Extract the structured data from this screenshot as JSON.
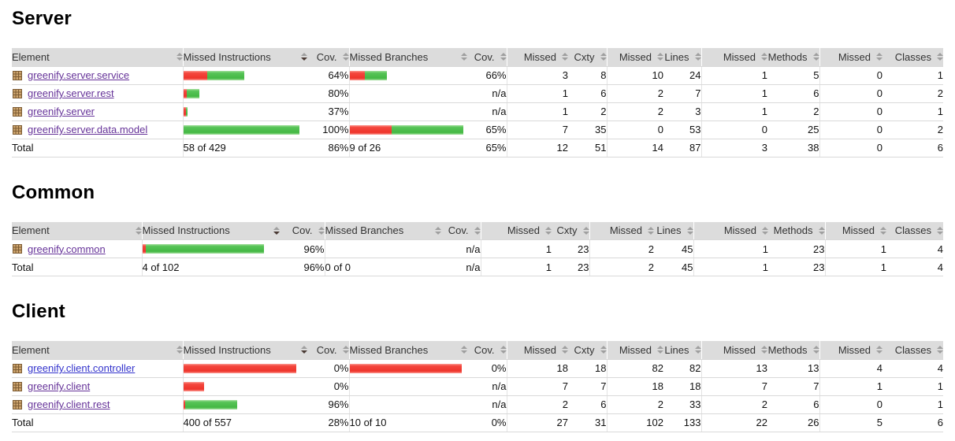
{
  "colors": {
    "bar_red": "#ee342b",
    "bar_green": "#43b843",
    "header_bg": "#dcdcdc",
    "link_visited": "#663399",
    "link_unvisited": "#3333cc",
    "row_border": "#d9d9d9",
    "package_icon_fill": "#cda46e",
    "package_icon_stroke": "#7c5b33"
  },
  "icons": {
    "package": "package-icon (brown waffle grid)",
    "sort": "up-down-triangles",
    "sort_active": "dark down-triangle (descending)"
  },
  "sort_state": {
    "column": "Missed Instructions",
    "direction": "descending"
  },
  "columns": [
    {
      "label": "Element"
    },
    {
      "label": "Missed Instructions",
      "sorted": "desc"
    },
    {
      "label": "Cov."
    },
    {
      "label": "Missed Branches"
    },
    {
      "label": "Cov."
    },
    {
      "label": "Missed"
    },
    {
      "label": "Cxty"
    },
    {
      "label": "Missed"
    },
    {
      "label": "Lines"
    },
    {
      "label": "Missed"
    },
    {
      "label": "Methods"
    },
    {
      "label": "Missed"
    },
    {
      "label": "Classes"
    }
  ],
  "sections": [
    {
      "heading": "Server",
      "rows": [
        {
          "name": "greenify.server.service",
          "instr_bar": {
            "red": 30,
            "green": 47
          },
          "instr_cov": "64%",
          "branch_bar": {
            "red": 19,
            "green": 28
          },
          "branch_cov": "66%",
          "missed_cxty": "3",
          "cxty": "8",
          "missed_lines": "10",
          "lines": "24",
          "missed_methods": "1",
          "methods": "5",
          "missed_classes": "0",
          "classes": "1"
        },
        {
          "name": "greenify.server.rest",
          "instr_bar": {
            "red": 4,
            "green": 16
          },
          "instr_cov": "80%",
          "branch_cov": "n/a",
          "missed_cxty": "1",
          "cxty": "6",
          "missed_lines": "2",
          "lines": "7",
          "missed_methods": "1",
          "methods": "6",
          "missed_classes": "0",
          "classes": "2"
        },
        {
          "name": "greenify.server",
          "instr_bar": {
            "red": 3,
            "green": 2
          },
          "instr_cov": "37%",
          "branch_cov": "n/a",
          "missed_cxty": "1",
          "cxty": "2",
          "missed_lines": "2",
          "lines": "3",
          "missed_methods": "1",
          "methods": "2",
          "missed_classes": "0",
          "classes": "1"
        },
        {
          "name": "greenify.server.data.model",
          "instr_bar": {
            "green": 147
          },
          "instr_cov": "100%",
          "branch_bar": {
            "red": 53,
            "green": 91
          },
          "branch_cov": "65%",
          "missed_cxty": "7",
          "cxty": "35",
          "missed_lines": "0",
          "lines": "53",
          "missed_methods": "0",
          "methods": "25",
          "missed_classes": "0",
          "classes": "2"
        }
      ],
      "total": {
        "label": "Total",
        "instr": "58 of 429",
        "instr_cov": "86%",
        "branch": "9 of 26",
        "branch_cov": "65%",
        "missed_cxty": "12",
        "cxty": "51",
        "missed_lines": "14",
        "lines": "87",
        "missed_methods": "3",
        "methods": "38",
        "missed_classes": "0",
        "classes": "6"
      }
    },
    {
      "heading": "Common",
      "rows": [
        {
          "name": "greenify.common",
          "instr_bar": {
            "red": 4,
            "green": 150
          },
          "instr_cov": "96%",
          "branch_cov": "n/a",
          "missed_cxty": "1",
          "cxty": "23",
          "missed_lines": "2",
          "lines": "45",
          "missed_methods": "1",
          "methods": "23",
          "missed_classes": "1",
          "classes": "4"
        }
      ],
      "total": {
        "label": "Total",
        "instr": "4 of 102",
        "instr_cov": "96%",
        "branch": "0 of 0",
        "branch_cov": "n/a",
        "missed_cxty": "1",
        "cxty": "23",
        "missed_lines": "2",
        "lines": "45",
        "missed_methods": "1",
        "methods": "23",
        "missed_classes": "1",
        "classes": "4"
      }
    },
    {
      "heading": "Client",
      "rows": [
        {
          "name": "greenify.client.controller",
          "unvisited": true,
          "instr_bar": {
            "red": 143
          },
          "instr_cov": "0%",
          "branch_bar": {
            "red": 142
          },
          "branch_cov": "0%",
          "missed_cxty": "18",
          "cxty": "18",
          "missed_lines": "82",
          "lines": "82",
          "missed_methods": "13",
          "methods": "13",
          "missed_classes": "4",
          "classes": "4"
        },
        {
          "name": "greenify.client",
          "instr_bar": {
            "red": 26
          },
          "instr_cov": "0%",
          "branch_cov": "n/a",
          "missed_cxty": "7",
          "cxty": "7",
          "missed_lines": "18",
          "lines": "18",
          "missed_methods": "7",
          "methods": "7",
          "missed_classes": "1",
          "classes": "1"
        },
        {
          "name": "greenify.client.rest",
          "instr_bar": {
            "red": 2,
            "green": 66
          },
          "instr_cov": "96%",
          "branch_cov": "n/a",
          "missed_cxty": "2",
          "cxty": "6",
          "missed_lines": "2",
          "lines": "33",
          "missed_methods": "2",
          "methods": "6",
          "missed_classes": "0",
          "classes": "1"
        }
      ],
      "total": {
        "label": "Total",
        "instr": "400 of 557",
        "instr_cov": "28%",
        "branch": "10 of 10",
        "branch_cov": "0%",
        "missed_cxty": "27",
        "cxty": "31",
        "missed_lines": "102",
        "lines": "133",
        "missed_methods": "22",
        "methods": "26",
        "missed_classes": "5",
        "classes": "6"
      }
    }
  ]
}
